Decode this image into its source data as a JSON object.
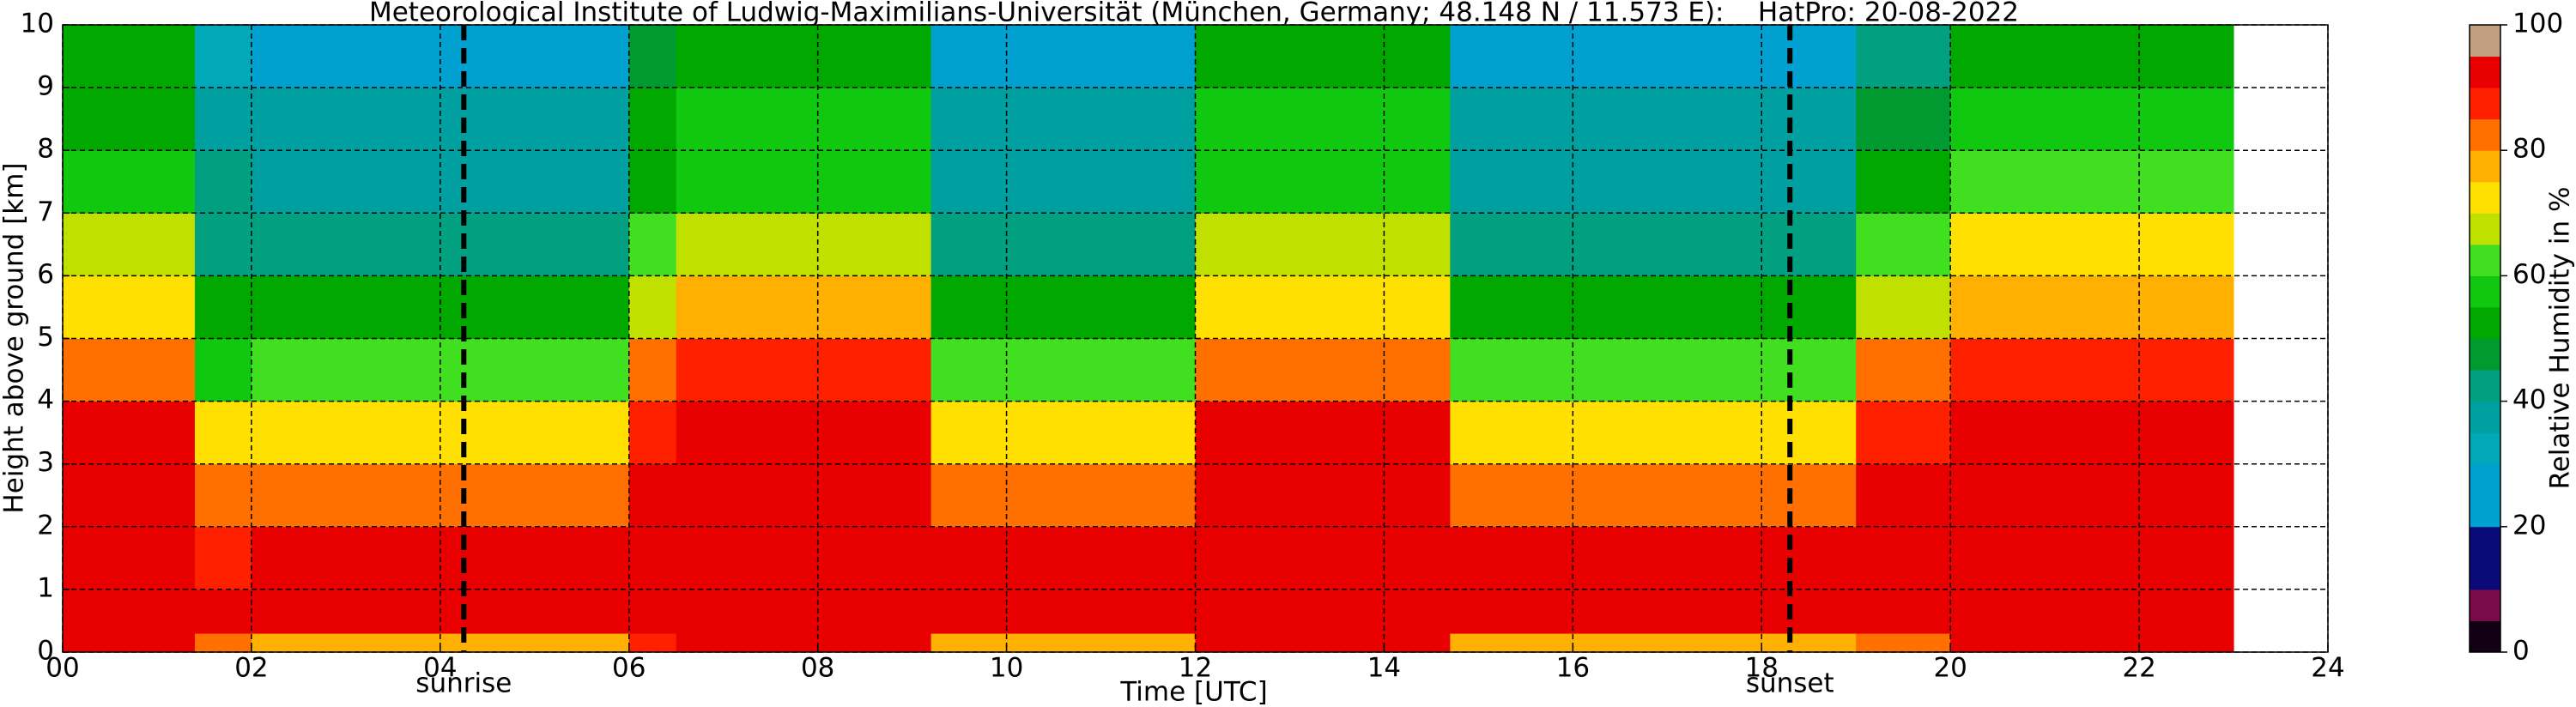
{
  "chart_data": {
    "type": "heatmap",
    "title": "Meteorological Institute of Ludwig-Maximilians-Universität (München, Germany; 48.148 N / 11.573 E):    HatPro: 20-08-2022",
    "x_label": "Time [UTC]",
    "y_label": "Height above ground [km]",
    "colorbar_label": "Relative Humidity in %",
    "xlim": [
      0,
      24
    ],
    "xticks": [
      {
        "value": 0,
        "label": "00"
      },
      {
        "value": 2,
        "label": "02"
      },
      {
        "value": 4,
        "label": "04"
      },
      {
        "value": 6,
        "label": "06"
      },
      {
        "value": 8,
        "label": "08"
      },
      10,
      12,
      14,
      16,
      18,
      20,
      22,
      24
    ],
    "ylim": [
      0,
      10
    ],
    "yticks": [
      0,
      1,
      2,
      3,
      4,
      5,
      6,
      7,
      8,
      9,
      10
    ],
    "grid": true,
    "zlim": [
      0,
      100
    ],
    "zticks": [
      0,
      20,
      40,
      60,
      80,
      100
    ],
    "colormap": [
      "#140014",
      "#7a0a4a",
      "#0a0a7a",
      "#0a0a7a",
      "#00a0d0",
      "#00a0d0",
      "#00a8b8",
      "#00a0a0",
      "#00a080",
      "#009a30",
      "#00a800",
      "#10c810",
      "#40e020",
      "#c0e000",
      "#ffe000",
      "#ffb000",
      "#ff7000",
      "#ff2000",
      "#e80000",
      "#c0a080"
    ],
    "x_edges": [
      0,
      1.4,
      2,
      6,
      6.5,
      9.2,
      12,
      14.7,
      19,
      20,
      23
    ],
    "y_edges": [
      0,
      0.3,
      1,
      2,
      3,
      4,
      5,
      6,
      7,
      8,
      9,
      10
    ],
    "z": [
      [
        93,
        80,
        78,
        85,
        92,
        78,
        92,
        78,
        84,
        92
      ],
      [
        93,
        90,
        92,
        93,
        94,
        92,
        94,
        92,
        92,
        94
      ],
      [
        94,
        88,
        90,
        93,
        94,
        90,
        94,
        90,
        92,
        94
      ],
      [
        92,
        80,
        84,
        90,
        93,
        84,
        93,
        84,
        90,
        92
      ],
      [
        90,
        70,
        74,
        88,
        91,
        74,
        90,
        74,
        86,
        90
      ],
      [
        82,
        58,
        60,
        80,
        88,
        60,
        84,
        60,
        80,
        86
      ],
      [
        72,
        50,
        50,
        68,
        76,
        50,
        74,
        50,
        68,
        76
      ],
      [
        66,
        44,
        42,
        60,
        66,
        42,
        66,
        42,
        60,
        70
      ],
      [
        55,
        40,
        38,
        54,
        58,
        38,
        58,
        38,
        54,
        62
      ],
      [
        52,
        36,
        35,
        50,
        55,
        35,
        55,
        35,
        48,
        56
      ],
      [
        50,
        32,
        28,
        45,
        52,
        28,
        52,
        28,
        42,
        52
      ]
    ],
    "annotations": [
      {
        "x": 4.25,
        "label": "sunrise"
      },
      {
        "x": 18.3,
        "label": "sunset"
      }
    ]
  }
}
